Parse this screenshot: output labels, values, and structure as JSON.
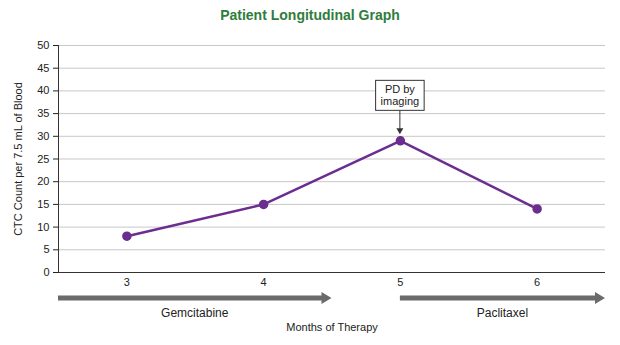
{
  "chart_data": {
    "type": "line",
    "title": "Patient Longitudinal Graph",
    "x_label": "Months of Therapy",
    "y_label": "CTC Count per 7.5 mL of Blood",
    "x": [
      3,
      4,
      5,
      6
    ],
    "values": [
      8,
      15,
      29,
      14
    ],
    "color": "#6b2d8f",
    "marker": "circle",
    "xlim": [
      2.5,
      6.5
    ],
    "xticks": [
      3,
      4,
      5,
      6
    ],
    "ylim": [
      0,
      50
    ],
    "yticks": [
      0,
      5,
      10,
      15,
      20,
      25,
      30,
      35,
      40,
      45,
      50
    ],
    "grid": true,
    "annotations": [
      {
        "text": "PD by imaging",
        "x": 5,
        "y": 29
      }
    ],
    "therapies": [
      {
        "name": "Gemcitabine",
        "start": 2.5,
        "end": 4.5
      },
      {
        "name": "Paclitaxel",
        "start": 5,
        "end": 6.5
      }
    ]
  }
}
